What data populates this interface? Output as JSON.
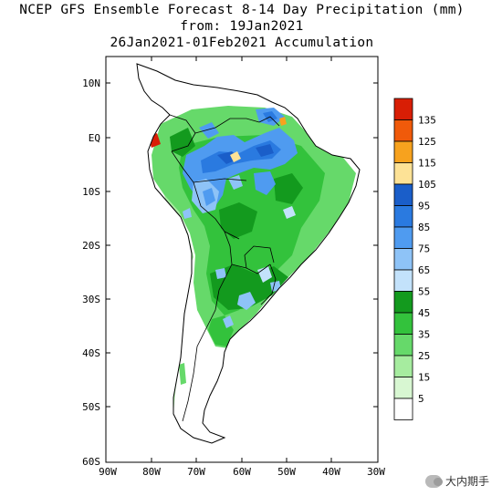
{
  "title": {
    "line1": "NCEP GFS Ensemble Forecast 8-14 Day Precipitation (mm)",
    "line2": "from: 19Jan2021",
    "line3": "26Jan2021-01Feb2021 Accumulation"
  },
  "lat_labels": [
    "10N",
    "EQ",
    "10S",
    "20S",
    "30S",
    "40S",
    "50S",
    "60S"
  ],
  "lon_labels": [
    "90W",
    "80W",
    "70W",
    "60W",
    "50W",
    "40W",
    "30W"
  ],
  "legend": [
    {
      "label": "135",
      "color": "#d81e05"
    },
    {
      "label": "125",
      "color": "#f05a0a"
    },
    {
      "label": "115",
      "color": "#f7a21e"
    },
    {
      "label": "105",
      "color": "#fde296"
    },
    {
      "label": "95",
      "color": "#1a5ec9"
    },
    {
      "label": "85",
      "color": "#2a7ae0"
    },
    {
      "label": "75",
      "color": "#4f9bf0"
    },
    {
      "label": "65",
      "color": "#8ec3f7"
    },
    {
      "label": "55",
      "color": "#c3e2fb"
    },
    {
      "label": "45",
      "color": "#139a1e"
    },
    {
      "label": "35",
      "color": "#33c23c"
    },
    {
      "label": "25",
      "color": "#66d96a"
    },
    {
      "label": "15",
      "color": "#a6ec9f"
    },
    {
      "label": "5",
      "color": "#d8f7d2"
    },
    {
      "label": "",
      "color": "#ffffff"
    }
  ],
  "watermark": "大内期手"
}
